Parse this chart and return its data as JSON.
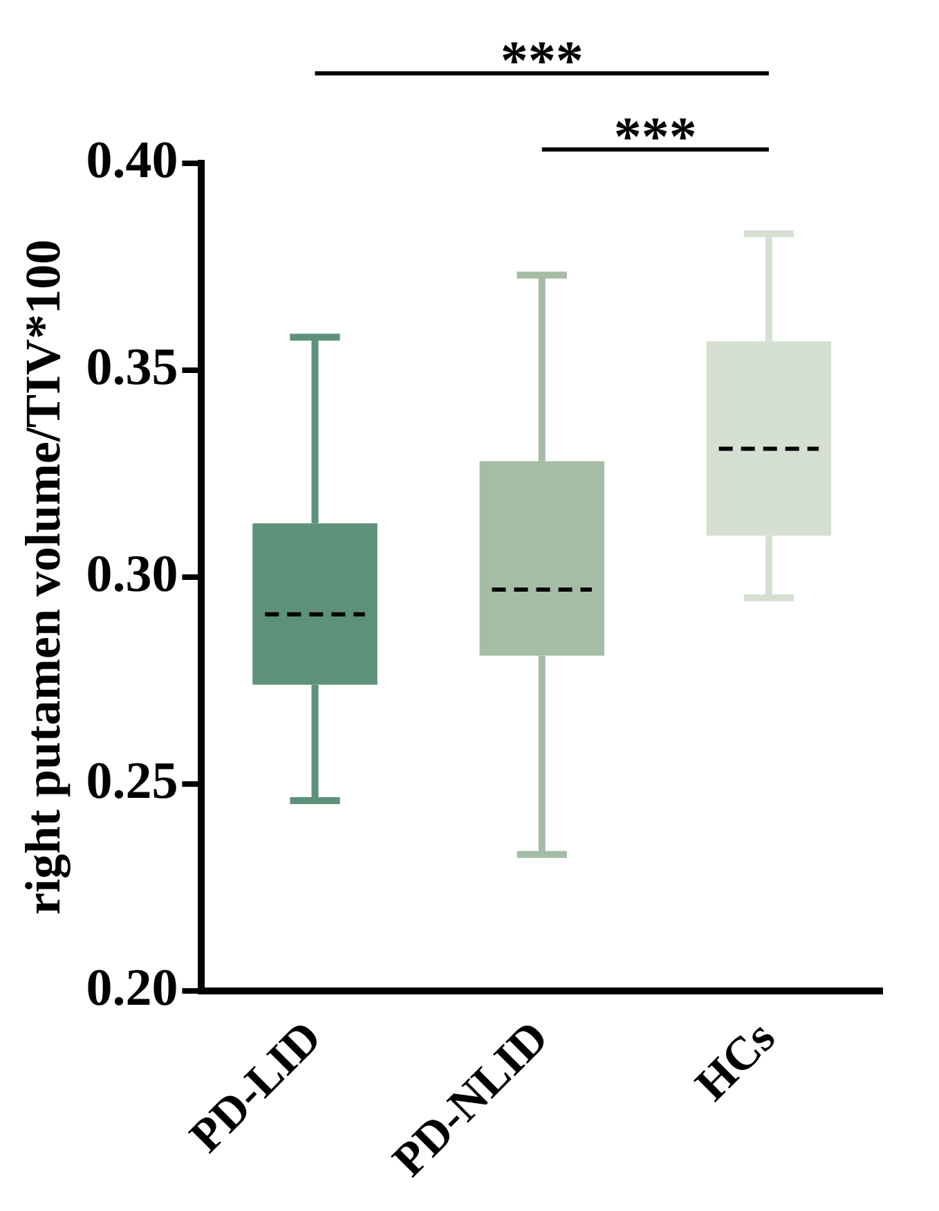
{
  "chart_data": {
    "type": "box",
    "ylabel": "right putamen volume/TIV*100",
    "categories": [
      "PD-LID",
      "PD-NLID",
      "HCs"
    ],
    "colors": [
      "#5d917a",
      "#a5bca5",
      "#d5e0d3"
    ],
    "boxes": [
      {
        "low": 0.246,
        "q1": 0.274,
        "median": 0.291,
        "q3": 0.313,
        "high": 0.358
      },
      {
        "low": 0.233,
        "q1": 0.281,
        "median": 0.297,
        "q3": 0.328,
        "high": 0.373
      },
      {
        "low": 0.295,
        "q1": 0.31,
        "median": 0.331,
        "q3": 0.357,
        "high": 0.383
      }
    ],
    "ylim": [
      0.2,
      0.4
    ],
    "yticks": [
      {
        "value": 0.2,
        "label": "0.20"
      },
      {
        "value": 0.25,
        "label": "0.25"
      },
      {
        "value": 0.3,
        "label": "0.30"
      },
      {
        "value": 0.35,
        "label": "0.35"
      },
      {
        "value": 0.4,
        "label": "0.40"
      }
    ],
    "annotations": [
      "***",
      "***"
    ],
    "grid": false,
    "legend": false
  }
}
